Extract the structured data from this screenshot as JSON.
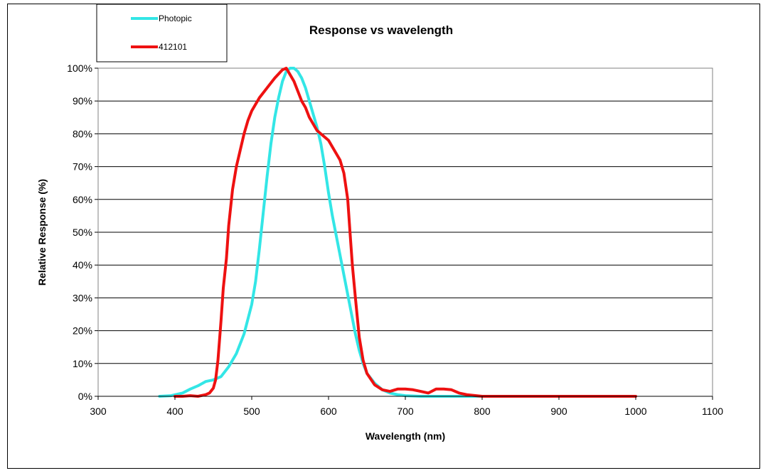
{
  "chart_data": {
    "type": "line",
    "title": "Response vs wavelength",
    "xlabel": "Wavelength (nm)",
    "ylabel": "Relative Response (%)",
    "xlim": [
      300,
      1100
    ],
    "ylim": [
      0,
      100
    ],
    "xticks": [
      "300",
      "400",
      "500",
      "600",
      "700",
      "800",
      "900",
      "1000",
      "1100"
    ],
    "yticks": [
      "0%",
      "10%",
      "20%",
      "30%",
      "40%",
      "50%",
      "60%",
      "70%",
      "80%",
      "90%",
      "100%"
    ],
    "grid": "horizontal",
    "legend_position": "top-left",
    "series": [
      {
        "name": "Photopic",
        "color": "#33e6e6",
        "points": [
          [
            380,
            0
          ],
          [
            395,
            0.2
          ],
          [
            410,
            1
          ],
          [
            420,
            2.2
          ],
          [
            430,
            3.2
          ],
          [
            440,
            4.5
          ],
          [
            450,
            5
          ],
          [
            460,
            6
          ],
          [
            470,
            9
          ],
          [
            480,
            13
          ],
          [
            490,
            19
          ],
          [
            500,
            28
          ],
          [
            505,
            35
          ],
          [
            510,
            45
          ],
          [
            515,
            56
          ],
          [
            520,
            67
          ],
          [
            525,
            77
          ],
          [
            530,
            85
          ],
          [
            535,
            91
          ],
          [
            540,
            96
          ],
          [
            545,
            99
          ],
          [
            550,
            100
          ],
          [
            555,
            100
          ],
          [
            560,
            99
          ],
          [
            565,
            97
          ],
          [
            570,
            94
          ],
          [
            575,
            90
          ],
          [
            580,
            86
          ],
          [
            585,
            82
          ],
          [
            590,
            77
          ],
          [
            595,
            70
          ],
          [
            600,
            62
          ],
          [
            605,
            55
          ],
          [
            610,
            49
          ],
          [
            615,
            43
          ],
          [
            620,
            37
          ],
          [
            625,
            31
          ],
          [
            630,
            25
          ],
          [
            635,
            19
          ],
          [
            640,
            14
          ],
          [
            645,
            10
          ],
          [
            650,
            7
          ],
          [
            660,
            4
          ],
          [
            670,
            2
          ],
          [
            680,
            1
          ],
          [
            690,
            0.5
          ],
          [
            700,
            0.2
          ],
          [
            720,
            0
          ],
          [
            800,
            0
          ]
        ]
      },
      {
        "name": "412101",
        "color": "#ee1111",
        "points": [
          [
            400,
            0
          ],
          [
            410,
            0
          ],
          [
            420,
            0.2
          ],
          [
            430,
            0
          ],
          [
            440,
            0.5
          ],
          [
            445,
            1
          ],
          [
            450,
            2.5
          ],
          [
            453,
            5
          ],
          [
            456,
            11
          ],
          [
            460,
            23
          ],
          [
            463,
            33
          ],
          [
            467,
            42
          ],
          [
            470,
            52
          ],
          [
            475,
            63
          ],
          [
            480,
            70
          ],
          [
            485,
            75
          ],
          [
            490,
            80
          ],
          [
            495,
            84
          ],
          [
            500,
            87
          ],
          [
            510,
            91
          ],
          [
            520,
            94
          ],
          [
            530,
            97
          ],
          [
            540,
            99.5
          ],
          [
            545,
            100
          ],
          [
            550,
            98
          ],
          [
            555,
            96
          ],
          [
            560,
            93
          ],
          [
            565,
            90
          ],
          [
            570,
            88
          ],
          [
            575,
            85
          ],
          [
            580,
            83
          ],
          [
            585,
            81
          ],
          [
            590,
            80
          ],
          [
            595,
            79
          ],
          [
            600,
            78
          ],
          [
            605,
            76
          ],
          [
            610,
            74
          ],
          [
            615,
            72
          ],
          [
            620,
            68
          ],
          [
            625,
            60
          ],
          [
            628,
            50
          ],
          [
            631,
            40
          ],
          [
            635,
            30
          ],
          [
            640,
            18
          ],
          [
            645,
            11
          ],
          [
            650,
            7
          ],
          [
            660,
            3.5
          ],
          [
            670,
            2
          ],
          [
            680,
            1.5
          ],
          [
            690,
            2.2
          ],
          [
            700,
            2.2
          ],
          [
            710,
            2
          ],
          [
            720,
            1.5
          ],
          [
            730,
            1
          ],
          [
            740,
            2.2
          ],
          [
            750,
            2.2
          ],
          [
            760,
            2
          ],
          [
            770,
            1
          ],
          [
            780,
            0.5
          ],
          [
            800,
            0
          ],
          [
            850,
            0
          ],
          [
            1000,
            0
          ]
        ]
      }
    ]
  }
}
